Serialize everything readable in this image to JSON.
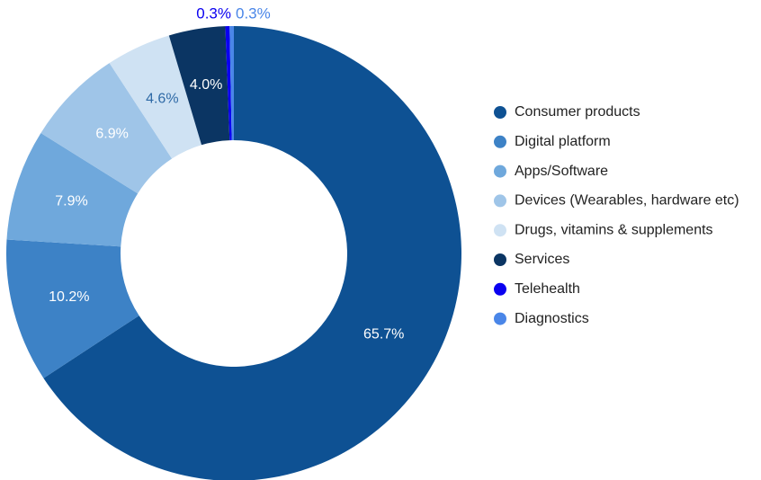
{
  "chart_data": {
    "type": "donut",
    "categories": [
      "Consumer products",
      "Digital platform",
      "Apps/Software",
      "Devices (Wearables, hardware etc)",
      "Drugs, vitamins & supplements",
      "Services",
      "Telehealth",
      "Diagnostics"
    ],
    "values": [
      65.7,
      10.2,
      7.9,
      6.9,
      4.6,
      4.0,
      0.3,
      0.3
    ],
    "value_labels": [
      "65.7%",
      "10.2%",
      "7.9%",
      "6.9%",
      "4.6%",
      "4.0%",
      "0.3%",
      "0.3%"
    ],
    "colors": [
      "#0e5193",
      "#3d82c6",
      "#6fa8dc",
      "#9fc5e8",
      "#cfe2f3",
      "#0b3563",
      "#0a00f0",
      "#4a86e8"
    ],
    "legend": "right"
  }
}
